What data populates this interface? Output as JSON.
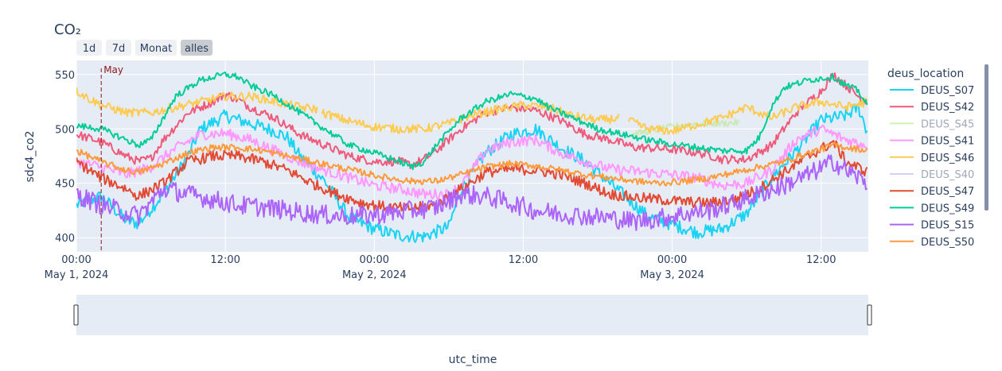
{
  "chart_data": {
    "type": "line",
    "title": "CO₂",
    "xlabel": "utc_time",
    "ylabel": "sdc4_co2",
    "legend_title": "deus_location",
    "legend_position": "right",
    "grid": true,
    "x_range_hours": [
      0,
      63.8
    ],
    "y_range": [
      387,
      563
    ],
    "x_ticks": [
      {
        "hour": 0,
        "label": "00:00",
        "date": "May 1, 2024"
      },
      {
        "hour": 12,
        "label": "12:00",
        "date": ""
      },
      {
        "hour": 24,
        "label": "00:00",
        "date": "May 2, 2024"
      },
      {
        "hour": 36,
        "label": "12:00",
        "date": ""
      },
      {
        "hour": 48,
        "label": "00:00",
        "date": "May 3, 2024"
      },
      {
        "hour": 60,
        "label": "12:00",
        "date": ""
      }
    ],
    "y_ticks": [
      400,
      450,
      500,
      550
    ],
    "annotation": {
      "label": "May",
      "hour": 2.0,
      "color": "#8b1a1a"
    },
    "range_buttons": [
      {
        "label": "1d",
        "active": false
      },
      {
        "label": "7d",
        "active": false
      },
      {
        "label": "Monat",
        "active": false
      },
      {
        "label": "alles",
        "active": true
      }
    ],
    "series": [
      {
        "name": "DEUS_S07",
        "color": "#19d3f3",
        "visible": true,
        "noise": 6,
        "gaps": [],
        "points": [
          [
            0,
            430
          ],
          [
            2,
            438
          ],
          [
            4,
            416
          ],
          [
            5,
            413
          ],
          [
            7,
            440
          ],
          [
            9,
            475
          ],
          [
            10,
            500
          ],
          [
            12,
            512
          ],
          [
            14,
            505
          ],
          [
            16,
            498
          ],
          [
            17,
            492
          ],
          [
            18,
            475
          ],
          [
            20,
            452
          ],
          [
            22,
            418
          ],
          [
            24,
            408
          ],
          [
            26,
            402
          ],
          [
            28,
            401
          ],
          [
            30,
            410
          ],
          [
            31,
            445
          ],
          [
            33,
            478
          ],
          [
            35,
            495
          ],
          [
            37,
            500
          ],
          [
            39,
            483
          ],
          [
            41,
            470
          ],
          [
            43,
            450
          ],
          [
            44,
            440
          ],
          [
            46,
            420
          ],
          [
            48,
            412
          ],
          [
            50,
            405
          ],
          [
            52,
            408
          ],
          [
            54,
            422
          ],
          [
            56,
            455
          ],
          [
            58,
            480
          ],
          [
            60,
            508
          ],
          [
            62,
            512
          ],
          [
            63,
            520
          ],
          [
            63.8,
            495
          ]
        ]
      },
      {
        "name": "DEUS_S42",
        "color": "#ef5a7a",
        "visible": true,
        "noise": 4,
        "gaps": [],
        "points": [
          [
            0,
            495
          ],
          [
            2,
            488
          ],
          [
            4,
            475
          ],
          [
            5,
            470
          ],
          [
            6,
            473
          ],
          [
            7,
            490
          ],
          [
            9,
            515
          ],
          [
            11,
            525
          ],
          [
            12,
            532
          ],
          [
            13,
            527
          ],
          [
            14,
            520
          ],
          [
            16,
            510
          ],
          [
            18,
            495
          ],
          [
            20,
            485
          ],
          [
            22,
            475
          ],
          [
            24,
            470
          ],
          [
            26,
            470
          ],
          [
            27,
            467
          ],
          [
            28,
            472
          ],
          [
            29,
            480
          ],
          [
            31,
            500
          ],
          [
            33,
            515
          ],
          [
            35,
            520
          ],
          [
            37,
            517
          ],
          [
            39,
            508
          ],
          [
            41,
            495
          ],
          [
            43,
            490
          ],
          [
            45,
            483
          ],
          [
            47,
            482
          ],
          [
            49,
            480
          ],
          [
            51,
            476
          ],
          [
            52,
            472
          ],
          [
            54,
            472
          ],
          [
            56,
            485
          ],
          [
            58,
            515
          ],
          [
            60,
            535
          ],
          [
            61,
            550
          ],
          [
            62,
            540
          ],
          [
            63,
            530
          ],
          [
            63.8,
            525
          ]
        ]
      },
      {
        "name": "DEUS_S45",
        "color": "#b6e880",
        "visible": false,
        "noise": 3,
        "gaps": [],
        "points": [
          [
            44.5,
            494
          ],
          [
            46,
            498
          ],
          [
            48,
            502
          ],
          [
            50,
            505
          ],
          [
            52,
            505
          ],
          [
            53.5,
            506
          ]
        ]
      },
      {
        "name": "DEUS_S41",
        "color": "#ff97ff",
        "visible": true,
        "noise": 5,
        "gaps": [],
        "points": [
          [
            0,
            470
          ],
          [
            2,
            465
          ],
          [
            4,
            458
          ],
          [
            6,
            465
          ],
          [
            8,
            482
          ],
          [
            10,
            495
          ],
          [
            12,
            496
          ],
          [
            14,
            490
          ],
          [
            16,
            480
          ],
          [
            18,
            470
          ],
          [
            20,
            462
          ],
          [
            22,
            455
          ],
          [
            24,
            448
          ],
          [
            26,
            445
          ],
          [
            28,
            440
          ],
          [
            30,
            440
          ],
          [
            31,
            448
          ],
          [
            33,
            480
          ],
          [
            35,
            488
          ],
          [
            37,
            490
          ],
          [
            39,
            478
          ],
          [
            41,
            470
          ],
          [
            43,
            463
          ],
          [
            46,
            460
          ],
          [
            48,
            458
          ],
          [
            50,
            455
          ],
          [
            52,
            448
          ],
          [
            54,
            450
          ],
          [
            56,
            462
          ],
          [
            58,
            490
          ],
          [
            60,
            500
          ],
          [
            62,
            490
          ],
          [
            63.8,
            485
          ]
        ]
      },
      {
        "name": "DEUS_S46",
        "color": "#fecb52",
        "visible": true,
        "noise": 4,
        "gaps": [
          [
            19.5,
            19.8
          ],
          [
            43.8,
            44.5
          ]
        ],
        "points": [
          [
            0,
            535
          ],
          [
            1,
            528
          ],
          [
            2,
            522
          ],
          [
            4,
            515
          ],
          [
            6,
            515
          ],
          [
            8,
            520
          ],
          [
            10,
            525
          ],
          [
            12,
            530
          ],
          [
            14,
            530
          ],
          [
            16,
            525
          ],
          [
            18,
            520
          ],
          [
            19.5,
            518
          ],
          [
            19.8,
            515
          ],
          [
            22,
            507
          ],
          [
            24,
            502
          ],
          [
            26,
            500
          ],
          [
            28,
            500
          ],
          [
            30,
            505
          ],
          [
            32,
            513
          ],
          [
            34,
            518
          ],
          [
            36,
            522
          ],
          [
            38,
            520
          ],
          [
            40,
            512
          ],
          [
            42,
            508
          ],
          [
            43.8,
            510
          ],
          [
            44.5,
            508
          ],
          [
            46,
            500
          ],
          [
            48,
            498
          ],
          [
            50,
            504
          ],
          [
            52,
            510
          ],
          [
            54,
            520
          ],
          [
            56,
            510
          ],
          [
            58,
            520
          ],
          [
            60,
            525
          ],
          [
            62,
            520
          ],
          [
            63.8,
            525
          ]
        ]
      },
      {
        "name": "DEUS_S40",
        "color": "#b8b4f0",
        "visible": false,
        "noise": 2,
        "gaps": [],
        "points": []
      },
      {
        "name": "DEUS_S47",
        "color": "#e24a33",
        "visible": true,
        "noise": 5,
        "gaps": [],
        "points": [
          [
            0,
            470
          ],
          [
            2,
            455
          ],
          [
            4,
            445
          ],
          [
            5,
            438
          ],
          [
            7,
            450
          ],
          [
            9,
            470
          ],
          [
            11,
            475
          ],
          [
            13,
            475
          ],
          [
            15,
            470
          ],
          [
            17,
            462
          ],
          [
            19,
            450
          ],
          [
            21,
            440
          ],
          [
            23,
            432
          ],
          [
            25,
            428
          ],
          [
            27,
            427
          ],
          [
            29,
            430
          ],
          [
            31,
            445
          ],
          [
            33,
            460
          ],
          [
            35,
            463
          ],
          [
            37,
            462
          ],
          [
            39,
            458
          ],
          [
            41,
            450
          ],
          [
            43,
            440
          ],
          [
            45,
            437
          ],
          [
            47,
            435
          ],
          [
            49,
            433
          ],
          [
            51,
            432
          ],
          [
            53,
            435
          ],
          [
            55,
            445
          ],
          [
            57,
            460
          ],
          [
            59,
            475
          ],
          [
            61,
            488
          ],
          [
            62,
            470
          ],
          [
            63.8,
            460
          ]
        ]
      },
      {
        "name": "DEUS_S49",
        "color": "#00cc96",
        "visible": true,
        "noise": 3,
        "gaps": [],
        "points": [
          [
            0,
            503
          ],
          [
            2,
            500
          ],
          [
            4,
            490
          ],
          [
            5,
            485
          ],
          [
            6,
            490
          ],
          [
            7,
            510
          ],
          [
            8,
            530
          ],
          [
            10,
            545
          ],
          [
            12,
            550
          ],
          [
            13,
            548
          ],
          [
            14,
            540
          ],
          [
            16,
            530
          ],
          [
            18,
            515
          ],
          [
            20,
            500
          ],
          [
            22,
            485
          ],
          [
            24,
            478
          ],
          [
            26,
            470
          ],
          [
            27,
            465
          ],
          [
            28,
            470
          ],
          [
            29,
            485
          ],
          [
            31,
            510
          ],
          [
            33,
            525
          ],
          [
            35,
            532
          ],
          [
            37,
            528
          ],
          [
            38,
            520
          ],
          [
            40,
            510
          ],
          [
            42,
            500
          ],
          [
            44,
            495
          ],
          [
            46,
            490
          ],
          [
            48,
            486
          ],
          [
            50,
            483
          ],
          [
            52,
            480
          ],
          [
            54,
            480
          ],
          [
            55,
            492
          ],
          [
            56,
            520
          ],
          [
            57,
            538
          ],
          [
            59,
            545
          ],
          [
            61,
            548
          ],
          [
            62,
            540
          ],
          [
            63,
            535
          ],
          [
            63.8,
            520
          ]
        ]
      },
      {
        "name": "DEUS_S15",
        "color": "#ab63fa",
        "visible": true,
        "noise": 9,
        "gaps": [],
        "points": [
          [
            0,
            440
          ],
          [
            2,
            430
          ],
          [
            4,
            423
          ],
          [
            5,
            420
          ],
          [
            6,
            432
          ],
          [
            7,
            445
          ],
          [
            9,
            440
          ],
          [
            11,
            435
          ],
          [
            13,
            430
          ],
          [
            15,
            428
          ],
          [
            17,
            425
          ],
          [
            19,
            422
          ],
          [
            21,
            420
          ],
          [
            23,
            420
          ],
          [
            25,
            422
          ],
          [
            27,
            425
          ],
          [
            29,
            428
          ],
          [
            31,
            440
          ],
          [
            33,
            438
          ],
          [
            35,
            432
          ],
          [
            37,
            425
          ],
          [
            39,
            422
          ],
          [
            41,
            420
          ],
          [
            43,
            418
          ],
          [
            45,
            415
          ],
          [
            47,
            418
          ],
          [
            49,
            422
          ],
          [
            51,
            425
          ],
          [
            53,
            432
          ],
          [
            55,
            440
          ],
          [
            57,
            448
          ],
          [
            59,
            458
          ],
          [
            61,
            470
          ],
          [
            62,
            462
          ],
          [
            63.8,
            450
          ]
        ]
      },
      {
        "name": "DEUS_S50",
        "color": "#ff9a3c",
        "visible": true,
        "noise": 3,
        "gaps": [],
        "points": [
          [
            0,
            480
          ],
          [
            2,
            470
          ],
          [
            4,
            462
          ],
          [
            5,
            460
          ],
          [
            7,
            468
          ],
          [
            9,
            478
          ],
          [
            11,
            483
          ],
          [
            13,
            483
          ],
          [
            15,
            480
          ],
          [
            17,
            475
          ],
          [
            19,
            470
          ],
          [
            21,
            465
          ],
          [
            23,
            460
          ],
          [
            25,
            455
          ],
          [
            27,
            452
          ],
          [
            29,
            452
          ],
          [
            31,
            458
          ],
          [
            33,
            465
          ],
          [
            35,
            468
          ],
          [
            37,
            466
          ],
          [
            39,
            462
          ],
          [
            41,
            458
          ],
          [
            43,
            455
          ],
          [
            45,
            452
          ],
          [
            47,
            450
          ],
          [
            49,
            452
          ],
          [
            51,
            455
          ],
          [
            53,
            460
          ],
          [
            55,
            465
          ],
          [
            57,
            470
          ],
          [
            59,
            478
          ],
          [
            61,
            485
          ],
          [
            63.8,
            480
          ]
        ]
      }
    ]
  }
}
